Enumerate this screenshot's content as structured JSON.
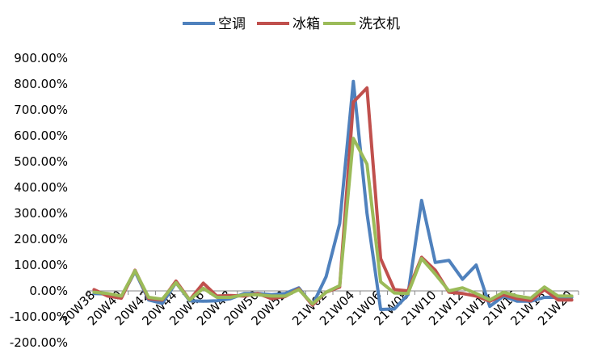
{
  "chart_data": {
    "type": "line",
    "title": "",
    "xlabel": "",
    "ylabel": "",
    "legend_position": "top-center",
    "grid": false,
    "ylim": [
      -200,
      900
    ],
    "y_tick_step": 100,
    "y_ticks": [
      "-200.00%",
      "-100.00%",
      "0.00%",
      "100.00%",
      "200.00%",
      "300.00%",
      "400.00%",
      "500.00%",
      "600.00%",
      "700.00%",
      "800.00%",
      "900.00%"
    ],
    "categories": [
      "20W38",
      "20W39",
      "20W40",
      "20W41",
      "20W42",
      "20W43",
      "20W44",
      "20W45",
      "20W46",
      "20W47",
      "20W48",
      "20W49",
      "20W50",
      "20W51",
      "20W52",
      "20W53",
      "21W01",
      "21W02",
      "21W03",
      "21W04",
      "21W05",
      "21W06",
      "21W07",
      "21W08",
      "21W09",
      "21W10",
      "21W11",
      "21W12",
      "21W13",
      "21W14",
      "21W15",
      "21W16",
      "21W17",
      "21W18",
      "21W19",
      "21W20"
    ],
    "x_tick_labels": [
      "20W38",
      "20W40",
      "20W42",
      "20W44",
      "20W46",
      "20W48",
      "20W50",
      "20W52",
      "21W02",
      "21W04",
      "21W06",
      "21W08",
      "21W10",
      "21W12",
      "21W14",
      "21W16",
      "21W18",
      "21W20"
    ],
    "series": [
      {
        "name": "空调",
        "color": "#4f81bd",
        "values": [
          -10,
          -12,
          -25,
          75,
          -35,
          -48,
          32,
          -38,
          -40,
          -38,
          -30,
          -10,
          -10,
          -15,
          -10,
          12,
          -55,
          55,
          260,
          810,
          300,
          -72,
          -70,
          -15,
          350,
          110,
          118,
          45,
          100,
          -60,
          -20,
          -40,
          -40,
          -25,
          -25,
          -25
        ]
      },
      {
        "name": "冰箱",
        "color": "#c0504d",
        "values": [
          5,
          -20,
          -28,
          80,
          -30,
          -35,
          38,
          -35,
          30,
          -20,
          -18,
          -20,
          -10,
          -30,
          -22,
          8,
          -55,
          -5,
          15,
          730,
          785,
          125,
          5,
          0,
          130,
          80,
          -5,
          -10,
          -20,
          -40,
          -15,
          -30,
          -38,
          5,
          -35,
          -35
        ]
      },
      {
        "name": "洗衣机",
        "color": "#9bbb59",
        "values": [
          -5,
          -10,
          -20,
          78,
          -25,
          -32,
          32,
          -35,
          10,
          -25,
          -25,
          -15,
          -15,
          -20,
          -20,
          5,
          -50,
          -5,
          20,
          590,
          490,
          35,
          -8,
          -10,
          125,
          65,
          0,
          12,
          -10,
          -35,
          -5,
          -20,
          -28,
          15,
          -20,
          -20
        ]
      }
    ]
  }
}
